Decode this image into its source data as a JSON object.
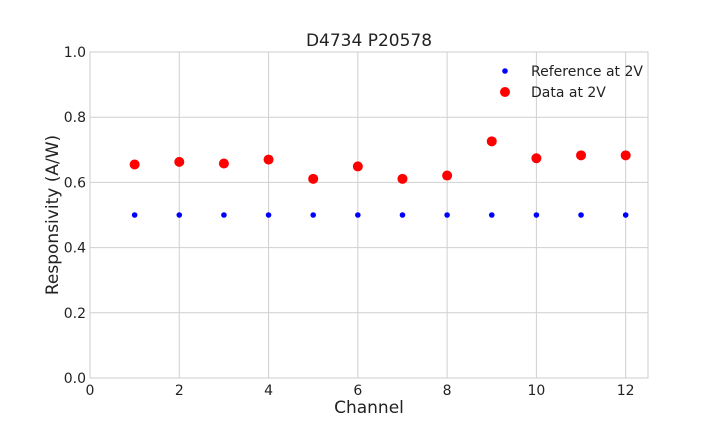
{
  "chart_data": {
    "type": "scatter",
    "title": "D4734 P20578",
    "xlabel": "Channel",
    "ylabel": "Responsivity (A/W)",
    "xlim": [
      0,
      12.5
    ],
    "ylim": [
      0,
      1.0
    ],
    "xticks": [
      "0",
      "2",
      "4",
      "6",
      "8",
      "10",
      "12"
    ],
    "yticks": [
      "0.0",
      "0.2",
      "0.4",
      "0.6",
      "0.8",
      "1.0"
    ],
    "grid": true,
    "legend_position": "top-right",
    "series": [
      {
        "name": "Reference at 2V",
        "color": "#0000ff",
        "marker_size": "small",
        "x": [
          1,
          2,
          3,
          4,
          5,
          6,
          7,
          8,
          9,
          10,
          11,
          12
        ],
        "y": [
          0.5,
          0.5,
          0.5,
          0.5,
          0.5,
          0.5,
          0.5,
          0.5,
          0.5,
          0.5,
          0.5,
          0.5
        ]
      },
      {
        "name": "Data at 2V",
        "color": "#ff0000",
        "marker_size": "large",
        "x": [
          1,
          2,
          3,
          4,
          5,
          6,
          7,
          8,
          9,
          10,
          11,
          12
        ],
        "y": [
          0.655,
          0.663,
          0.658,
          0.67,
          0.611,
          0.649,
          0.611,
          0.621,
          0.726,
          0.674,
          0.683,
          0.683
        ]
      }
    ]
  }
}
